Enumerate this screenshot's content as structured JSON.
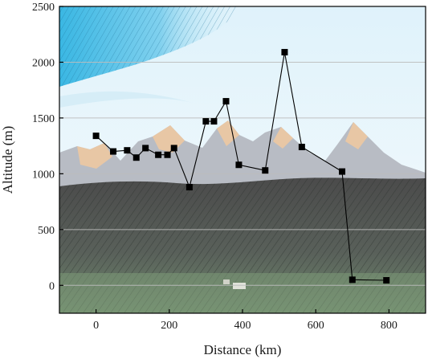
{
  "chart_data": {
    "type": "line",
    "title": "",
    "xlabel": "Distance  (km)",
    "ylabel": "Altitude  (m)",
    "xlim": [
      -100,
      900
    ],
    "ylim": [
      -250,
      2500
    ],
    "x_ticks": [
      0,
      200,
      400,
      600,
      800
    ],
    "y_ticks": [
      0,
      500,
      1000,
      1500,
      2000,
      2500
    ],
    "grid": true,
    "background": "mountain landscape photo",
    "series": [
      {
        "color": "#000000",
        "marker": "square",
        "points": [
          {
            "x": 0,
            "y": 1340
          },
          {
            "x": 47,
            "y": 1200
          },
          {
            "x": 85,
            "y": 1210
          },
          {
            "x": 110,
            "y": 1145
          },
          {
            "x": 135,
            "y": 1230
          },
          {
            "x": 170,
            "y": 1170
          },
          {
            "x": 195,
            "y": 1170
          },
          {
            "x": 213,
            "y": 1230
          },
          {
            "x": 255,
            "y": 880
          },
          {
            "x": 300,
            "y": 1470
          },
          {
            "x": 322,
            "y": 1470
          },
          {
            "x": 355,
            "y": 1650
          },
          {
            "x": 390,
            "y": 1080
          },
          {
            "x": 462,
            "y": 1030
          },
          {
            "x": 515,
            "y": 2090
          },
          {
            "x": 562,
            "y": 1240
          },
          {
            "x": 672,
            "y": 1020
          },
          {
            "x": 700,
            "y": 50
          },
          {
            "x": 793,
            "y": 45
          }
        ]
      }
    ]
  }
}
